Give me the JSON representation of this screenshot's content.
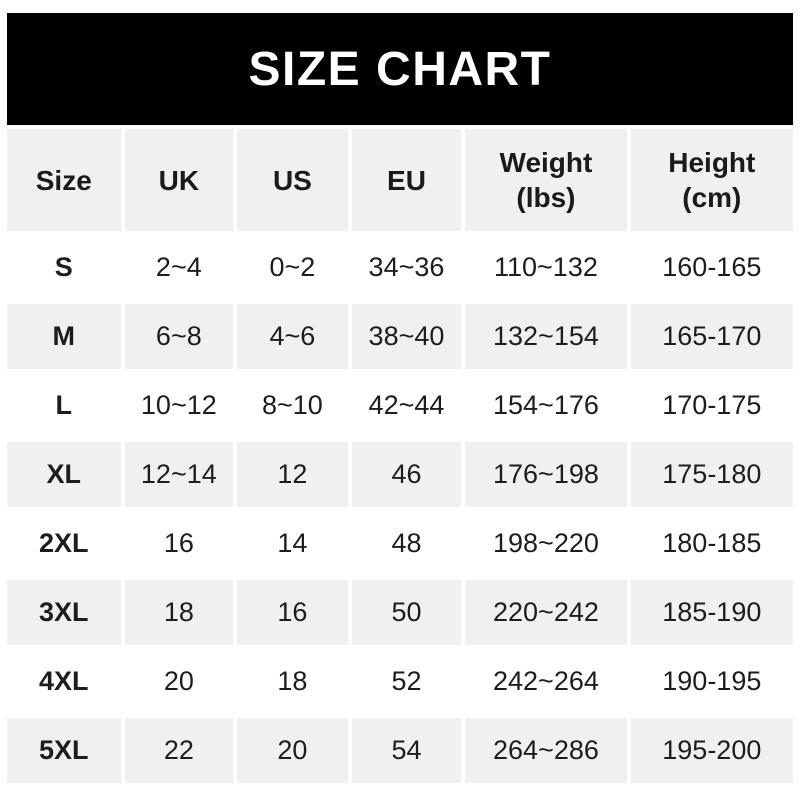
{
  "banner": {
    "title": "SIZE CHART",
    "background": "#000000",
    "text_color": "#ffffff"
  },
  "colors": {
    "page_background": "#ffffff",
    "header_row_background": "#f0f0f0",
    "alt_row_background": "#f0f0f0",
    "row_background": "#ffffff",
    "text": "#1d1d1f"
  },
  "chart_data": {
    "type": "table",
    "title": "SIZE CHART",
    "columns": [
      {
        "label": "Size",
        "sub": ""
      },
      {
        "label": "UK",
        "sub": ""
      },
      {
        "label": "US",
        "sub": ""
      },
      {
        "label": "EU",
        "sub": ""
      },
      {
        "label": "Weight",
        "sub": "(lbs)"
      },
      {
        "label": "Height",
        "sub": "(cm)"
      }
    ],
    "rows": [
      [
        "S",
        "2~4",
        "0~2",
        "34~36",
        "110~132",
        "160-165"
      ],
      [
        "M",
        "6~8",
        "4~6",
        "38~40",
        "132~154",
        "165-170"
      ],
      [
        "L",
        "10~12",
        "8~10",
        "42~44",
        "154~176",
        "170-175"
      ],
      [
        "XL",
        "12~14",
        "12",
        "46",
        "176~198",
        "175-180"
      ],
      [
        "2XL",
        "16",
        "14",
        "48",
        "198~220",
        "180-185"
      ],
      [
        "3XL",
        "18",
        "16",
        "50",
        "220~242",
        "185-190"
      ],
      [
        "4XL",
        "20",
        "18",
        "52",
        "242~264",
        "190-195"
      ],
      [
        "5XL",
        "22",
        "20",
        "54",
        "264~286",
        "195-200"
      ]
    ]
  }
}
